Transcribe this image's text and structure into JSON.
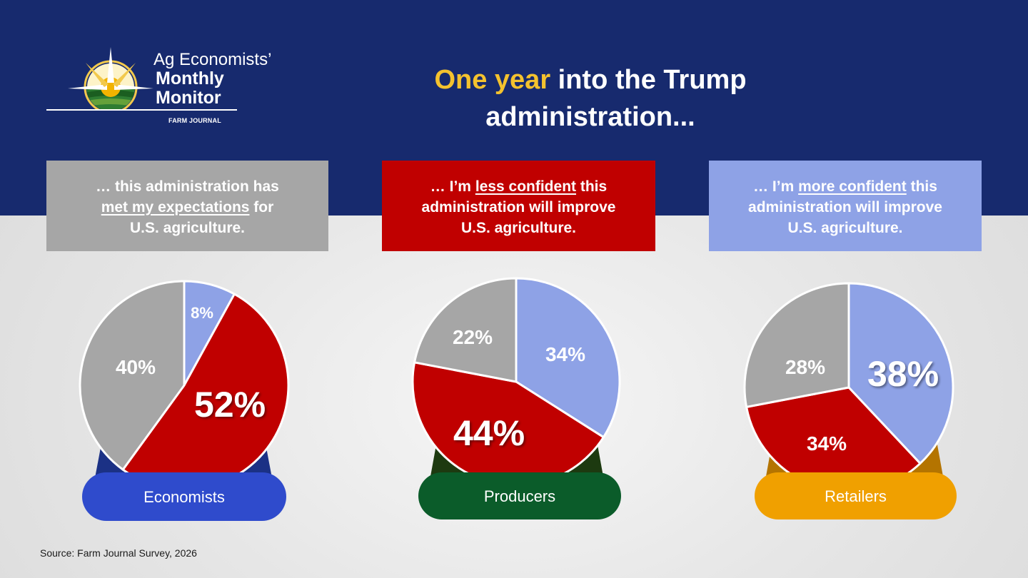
{
  "logo": {
    "line1": "Ag Economists’",
    "line2": "Monthly",
    "line3": "Monitor",
    "brand": "FARM JOURNAL"
  },
  "title": {
    "highlight": "One year",
    "rest_line1": " into the Trump",
    "line2": "administration..."
  },
  "statements": [
    {
      "line1": "… this administration has",
      "line2_underlined": "met my expectations",
      "line2_rest": " for",
      "line3": "U.S. agriculture."
    },
    {
      "line1_prefix": "… I’m ",
      "line1_underlined": "less confident",
      "line1_rest": " this",
      "line2": "administration will improve",
      "line3": "U.S. agriculture."
    },
    {
      "line1_prefix": "… I’m ",
      "line1_underlined": "more confident",
      "line1_rest": " this",
      "line2": "administration will improve",
      "line3": "U.S. agriculture."
    }
  ],
  "colors": {
    "header": "#172a6e",
    "title_highlight": "#f4c22e",
    "met_expectations": "#a6a6a6",
    "less_confident": "#c00000",
    "more_confident": "#8ea2e6"
  },
  "chart_data": [
    {
      "type": "pie",
      "group": "Economists",
      "pill_color": "#2f4bcc",
      "base_color": "#1b3185",
      "slices": [
        {
          "category": "more confident",
          "value": 8,
          "label": "8%",
          "color": "#8ea2e6"
        },
        {
          "category": "less confident",
          "value": 52,
          "label": "52%",
          "color": "#c00000"
        },
        {
          "category": "met expectations",
          "value": 40,
          "label": "40%",
          "color": "#a6a6a6"
        }
      ]
    },
    {
      "type": "pie",
      "group": "Producers",
      "pill_color": "#0b5c2a",
      "base_color": "#1d3a10",
      "slices": [
        {
          "category": "more confident",
          "value": 34,
          "label": "34%",
          "color": "#8ea2e6"
        },
        {
          "category": "less confident",
          "value": 44,
          "label": "44%",
          "color": "#c00000"
        },
        {
          "category": "met expectations",
          "value": 22,
          "label": "22%",
          "color": "#a6a6a6"
        }
      ]
    },
    {
      "type": "pie",
      "group": "Retailers",
      "pill_color": "#f0a000",
      "base_color": "#b47400",
      "slices": [
        {
          "category": "more confident",
          "value": 38,
          "label": "38%",
          "color": "#8ea2e6"
        },
        {
          "category": "less confident",
          "value": 34,
          "label": "34%",
          "color": "#c00000"
        },
        {
          "category": "met expectations",
          "value": 28,
          "label": "28%",
          "color": "#a6a6a6"
        }
      ]
    }
  ],
  "source": "Source: Farm Journal Survey, 2026"
}
